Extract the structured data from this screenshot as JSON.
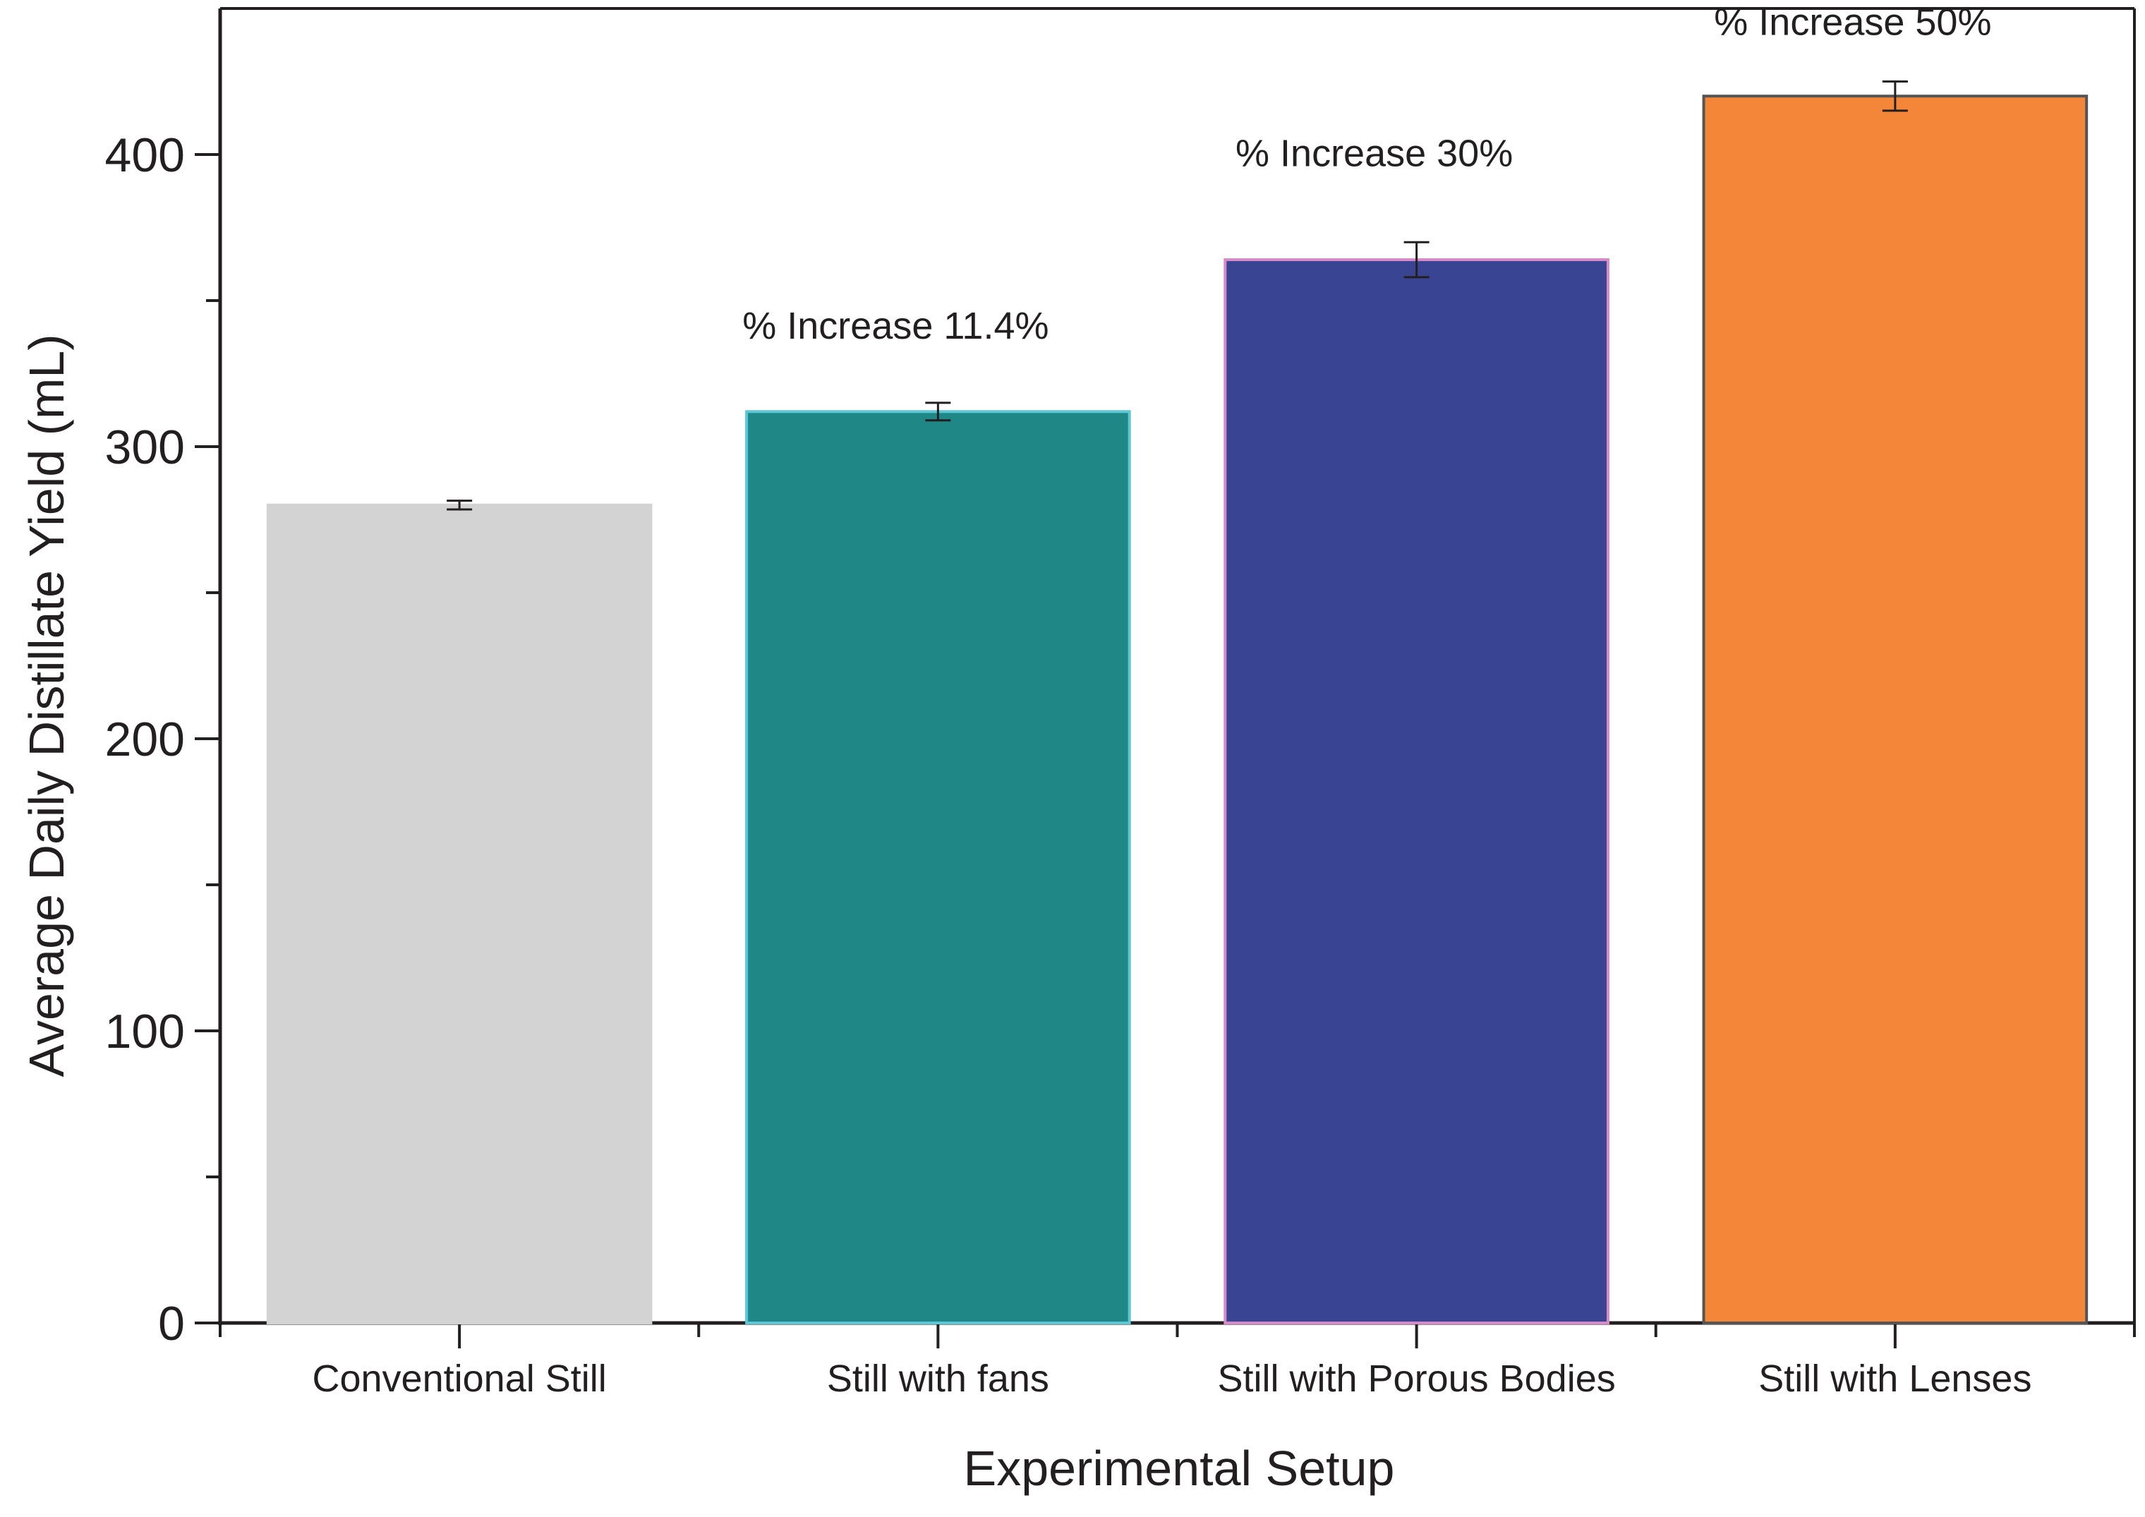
{
  "chart_data": {
    "type": "bar",
    "title": "",
    "xlabel": "Experimental Setup",
    "ylabel": "Average Daily Distillate Yield (mL)",
    "ylim": [
      0,
      450
    ],
    "yticks_major": [
      0,
      100,
      200,
      300,
      400
    ],
    "yticks_minor": [
      50,
      150,
      250,
      350
    ],
    "grid": false,
    "categories": [
      "Conventional Still",
      "Still with fans",
      "Still with Porous Bodies",
      "Still with Lenses"
    ],
    "values": [
      280,
      312,
      364,
      420
    ],
    "errors": [
      1.5,
      3,
      6,
      5
    ],
    "fill_colors": [
      "#d3d3d3",
      "#1f8785",
      "#394592",
      "#f38638"
    ],
    "edge_colors": [
      "#d3d3d3",
      "#5cc7d6",
      "#d78ac6",
      "#555555"
    ],
    "annotations": [
      "",
      "% Increase 11.4%",
      "% Increase 30%",
      "% Increase 50%"
    ],
    "annotation_values": [
      null,
      337,
      396,
      441
    ]
  }
}
